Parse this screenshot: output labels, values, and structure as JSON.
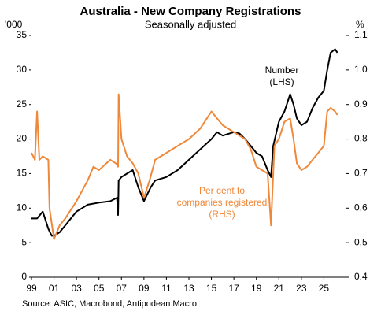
{
  "chart_data": {
    "type": "line",
    "title": "Australia - New Company Registrations",
    "subtitle": "Seasonally adjusted",
    "y_unit": "'000",
    "y2_unit": "%",
    "source": "Source: ASIC, Macrobond, Antipodean Macro",
    "annotations": [
      {
        "lines": [
          "Number",
          "(LHS)"
        ],
        "color": "#000000"
      },
      {
        "lines": [
          "Per cent to",
          "companies registered",
          "(RHS)"
        ],
        "color": "#f0883a"
      }
    ],
    "xlim": [
      1999,
      2027
    ],
    "xticks": [
      {
        "value": 1999,
        "label": "99"
      },
      {
        "value": 2001,
        "label": "01"
      },
      {
        "value": 2003,
        "label": "03"
      },
      {
        "value": 2005,
        "label": "05"
      },
      {
        "value": 2007,
        "label": "07"
      },
      {
        "value": 2009,
        "label": "09"
      },
      {
        "value": 2011,
        "label": "11"
      },
      {
        "value": 2013,
        "label": "13"
      },
      {
        "value": 2015,
        "label": "15"
      },
      {
        "value": 2017,
        "label": "17"
      },
      {
        "value": 2019,
        "label": "19"
      },
      {
        "value": 2021,
        "label": "21"
      },
      {
        "value": 2023,
        "label": "23"
      },
      {
        "value": 2025,
        "label": "25"
      }
    ],
    "ylim": [
      0,
      35
    ],
    "yticks": [
      0,
      5,
      10,
      15,
      20,
      25,
      30,
      35
    ],
    "y2lim": [
      0.4,
      1.1
    ],
    "y2ticks": [
      0.4,
      0.5,
      0.6,
      0.7,
      0.8,
      0.9,
      {
        "value": 1,
        "label": "1.0"
      },
      1.1
    ],
    "series": [
      {
        "color": "#000000",
        "axis": "y",
        "x": [
          1999,
          1999.5,
          2000,
          2000.3,
          2000.5,
          2000.8,
          2001,
          2001.5,
          2002,
          2002.5,
          2003,
          2003.5,
          2004,
          2005,
          2006,
          2006.6,
          2006.7,
          2006.75,
          2007,
          2007.5,
          2008,
          2008.5,
          2009,
          2009.3,
          2009.6,
          2010,
          2011,
          2012,
          2013,
          2014,
          2015,
          2015.5,
          2016,
          2017,
          2017.5,
          2018,
          2018.5,
          2019,
          2019.5,
          2020,
          2020.3,
          2020.5,
          2021,
          2021.5,
          2022,
          2022.3,
          2022.6,
          2023,
          2023.5,
          2024,
          2024.5,
          2025,
          2025.3,
          2025.6,
          2026,
          2026.2
        ],
        "values": [
          8.5,
          8.5,
          9.5,
          8,
          7,
          6,
          6,
          6.5,
          7.5,
          8.5,
          9.5,
          10,
          10.5,
          10.8,
          11,
          11.5,
          9,
          14,
          14.5,
          15,
          15.5,
          13,
          11,
          12,
          13,
          14,
          14.5,
          15.5,
          17,
          18.5,
          20,
          21,
          20.5,
          21,
          20.8,
          20,
          19,
          18,
          17.5,
          15.5,
          14.5,
          19,
          22.5,
          24,
          26.5,
          25,
          23,
          22,
          22.5,
          24.5,
          26,
          27,
          30,
          32.5,
          33,
          32.5
        ]
      },
      {
        "color": "#f0883a",
        "axis": "y2",
        "x": [
          1999,
          1999.3,
          1999.5,
          1999.7,
          2000,
          2000.5,
          2000.6,
          2001,
          2001.5,
          2002,
          2003,
          2004,
          2004.5,
          2005,
          2006,
          2006.5,
          2006.7,
          2006.75,
          2007,
          2007.5,
          2008,
          2008.5,
          2009,
          2009.5,
          2010,
          2011,
          2012,
          2013,
          2014,
          2015,
          2015.5,
          2016,
          2017,
          2018,
          2018.5,
          2019,
          2019.5,
          2020,
          2020.3,
          2020.6,
          2021,
          2021.5,
          2022,
          2022.3,
          2022.6,
          2023,
          2023.5,
          2024,
          2024.5,
          2025,
          2025.3,
          2025.6,
          2026,
          2026.2
        ],
        "values": [
          0.76,
          0.74,
          0.88,
          0.74,
          0.75,
          0.74,
          0.6,
          0.51,
          0.55,
          0.57,
          0.62,
          0.68,
          0.72,
          0.71,
          0.74,
          0.73,
          0.72,
          0.93,
          0.8,
          0.75,
          0.73,
          0.7,
          0.63,
          0.68,
          0.74,
          0.76,
          0.78,
          0.8,
          0.83,
          0.88,
          0.86,
          0.84,
          0.82,
          0.8,
          0.77,
          0.72,
          0.71,
          0.7,
          0.55,
          0.78,
          0.8,
          0.85,
          0.86,
          0.8,
          0.73,
          0.71,
          0.72,
          0.74,
          0.76,
          0.78,
          0.88,
          0.89,
          0.88,
          0.87
        ]
      }
    ]
  }
}
